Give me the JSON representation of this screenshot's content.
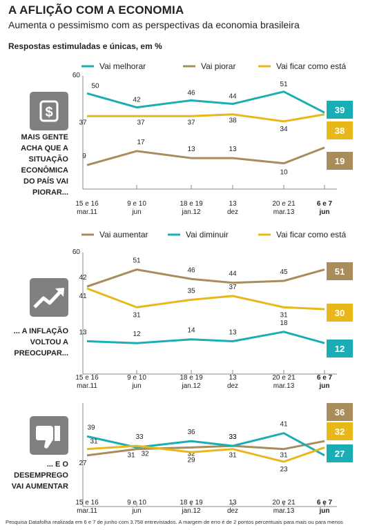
{
  "title": "A AFLIÇÃO COM A ECONOMIA",
  "subtitle": "Aumenta o pessimismo com as perspectivas da economia brasileira",
  "note": "Respostas estimuladas e únicas, em %",
  "footer": "Pesquisa Datafolha realizada em 6 e 7 de junho com 3.758 entrevistados. A margem de erro é de 2 pontos percentuais para mais ou para menos",
  "colors": {
    "teal": "#1aaeb4",
    "brown": "#a88c5c",
    "yellow": "#e8b81a",
    "icon_bg": "#808080",
    "axis": "#888888"
  },
  "chart_data": [
    {
      "type": "line",
      "side_text": [
        "MAIS GENTE",
        "ACHA QUE A",
        "SITUAÇÃO",
        "ECONÔMICA",
        "DO PAÍS VAI",
        "PIORAR..."
      ],
      "icon": "dollar-icon",
      "ymax_label": "60",
      "ylim": [
        0,
        60
      ],
      "categories": [
        [
          "15 e 16",
          "mar.11"
        ],
        [
          "9 e 10",
          "jun"
        ],
        [
          "18 e 19",
          "jan.12"
        ],
        [
          "13",
          "dez"
        ],
        [
          "20 e 21",
          "mar.13"
        ],
        [
          "6 e 7",
          "jun"
        ]
      ],
      "series": [
        {
          "name": "Vai melhorar",
          "color": "#1aaeb4",
          "values": [
            50,
            42,
            46,
            44,
            51,
            39
          ]
        },
        {
          "name": "Vai piorar",
          "color": "#a88c5c",
          "values": [
            9,
            17,
            13,
            13,
            10,
            19
          ]
        },
        {
          "name": "Vai ficar como está",
          "color": "#e8b81a",
          "values": [
            37,
            37,
            37,
            38,
            34,
            38
          ]
        }
      ]
    },
    {
      "type": "line",
      "side_text": [
        "... A INFLAÇÃO",
        "VOLTOU A",
        "PREOCUPAR..."
      ],
      "icon": "trend-up-icon",
      "ymax_label": "60",
      "ylim": [
        0,
        60
      ],
      "categories": [
        [
          "15 e 16",
          "mar.11"
        ],
        [
          "9 e 10",
          "jun"
        ],
        [
          "18 e 19",
          "jan.12"
        ],
        [
          "13",
          "dez"
        ],
        [
          "20 e 21",
          "mar.13"
        ],
        [
          "6 e 7",
          "jun"
        ]
      ],
      "series": [
        {
          "name": "Vai aumentar",
          "color": "#a88c5c",
          "values": [
            42,
            51,
            46,
            44,
            45,
            51
          ]
        },
        {
          "name": "Vai diminuir",
          "color": "#1aaeb4",
          "values": [
            13,
            12,
            14,
            13,
            18,
            12
          ]
        },
        {
          "name": "Vai ficar como está",
          "color": "#e8b81a",
          "values": [
            41,
            31,
            35,
            37,
            31,
            30
          ]
        }
      ]
    },
    {
      "type": "line",
      "side_text": [
        "... E O",
        "DESEMPREGO",
        "VAI AUMENTAR"
      ],
      "icon": "thumbs-down-icon",
      "ylim": [
        0,
        60
      ],
      "categories": [
        [
          "15 e 16",
          "mar.11"
        ],
        [
          "9 e 10",
          "jun"
        ],
        [
          "18 e 19",
          "jan.12"
        ],
        [
          "13",
          "dez"
        ],
        [
          "20 e 21",
          "mar.13"
        ],
        [
          "6 e 7",
          "jun"
        ]
      ],
      "series": [
        {
          "name": "Vai aumentar",
          "color": "#a88c5c",
          "values": [
            27,
            31,
            32,
            33,
            31,
            36
          ]
        },
        {
          "name": "Vai diminuir",
          "color": "#1aaeb4",
          "values": [
            39,
            32,
            36,
            33,
            41,
            27
          ]
        },
        {
          "name": "Vai ficar como está",
          "color": "#e8b81a",
          "values": [
            31,
            33,
            29,
            31,
            23,
            32
          ]
        }
      ]
    }
  ]
}
